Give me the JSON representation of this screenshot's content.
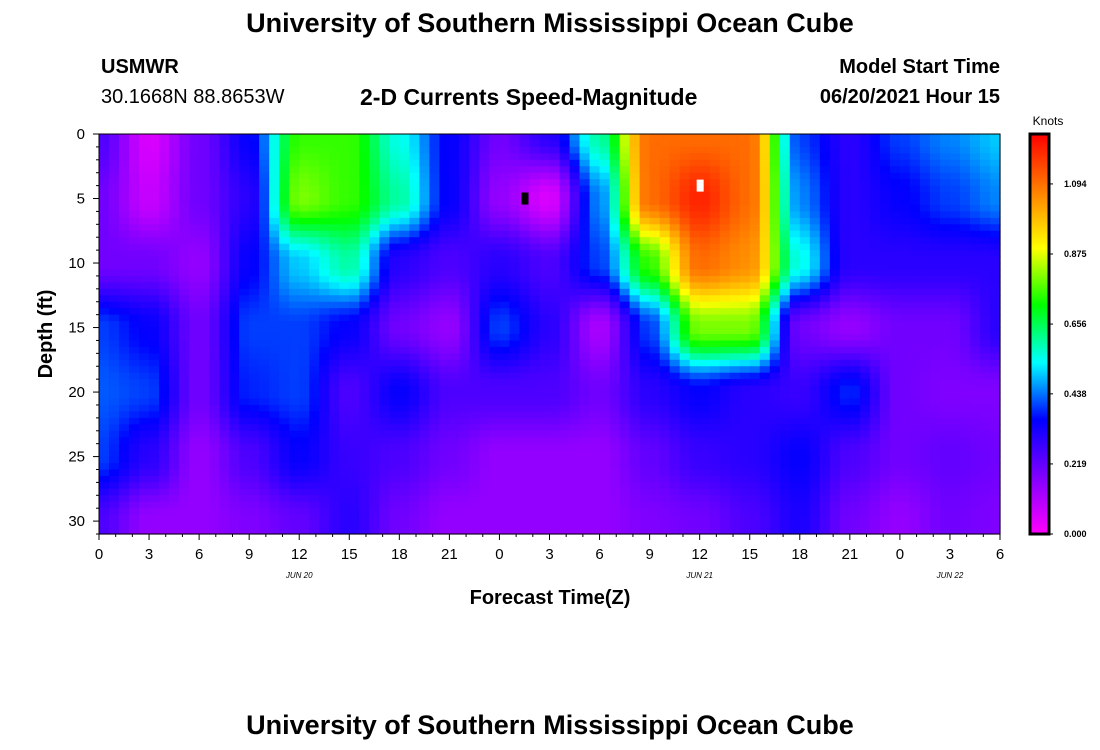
{
  "header": {
    "title": "University of Southern Mississippi Ocean Cube",
    "station": "USMWR",
    "location": "30.1668N  88.8653W",
    "plot_title": "2-D Currents Speed-Magnitude",
    "model_start_label": "Model Start Time",
    "model_start_value": "06/20/2021 Hour 15"
  },
  "footer": {
    "title": "University of Southern Mississippi Ocean Cube"
  },
  "colorbar": {
    "unit": "Knots",
    "labels": [
      "0.000",
      "0.219",
      "0.438",
      "0.656",
      "0.875",
      "1.094"
    ],
    "ticks": [
      0.0,
      0.219,
      0.438,
      0.656,
      0.875,
      1.094
    ],
    "max": 1.25,
    "colors": [
      "#ff00ff",
      "#8000ff",
      "#0000ff",
      "#00ffff",
      "#00ff00",
      "#ffff00",
      "#ff8000",
      "#ff0000"
    ]
  },
  "chart_data": {
    "type": "heatmap",
    "xlabel": "Forecast Time(Z)",
    "ylabel": "Depth (ft)",
    "x_range_hours": [
      0,
      54
    ],
    "ylim": [
      0,
      31
    ],
    "x_tick_labels": [
      "0",
      "3",
      "6",
      "9",
      "12",
      "15",
      "18",
      "21",
      "0",
      "3",
      "6",
      "9",
      "12",
      "15",
      "18",
      "21",
      "0",
      "3",
      "6"
    ],
    "y_tick_labels": [
      "0",
      "5",
      "10",
      "15",
      "20",
      "25",
      "30"
    ],
    "y_ticks": [
      0,
      5,
      10,
      15,
      20,
      25,
      30
    ],
    "date_labels": [
      {
        "label": "JUN 20",
        "hour": 12
      },
      {
        "label": "JUN 21",
        "hour": 36
      },
      {
        "label": "JUN 22",
        "hour": 51
      }
    ],
    "value_unit": "Knots",
    "depths": [
      0,
      5,
      10,
      15,
      20,
      25,
      30
    ],
    "hours": [
      0,
      3,
      6,
      9,
      12,
      15,
      18,
      21,
      24,
      27,
      30,
      33,
      36,
      39,
      42,
      45,
      48,
      51,
      54
    ],
    "values": [
      [
        0.25,
        0.05,
        0.2,
        0.35,
        0.75,
        0.75,
        0.55,
        0.35,
        0.2,
        0.3,
        0.6,
        1.1,
        1.1,
        1.1,
        0.4,
        0.3,
        0.4,
        0.45,
        0.5
      ],
      [
        0.2,
        0.08,
        0.2,
        0.3,
        0.8,
        0.75,
        0.6,
        0.35,
        0.15,
        0.05,
        0.45,
        1.1,
        1.2,
        1.1,
        0.45,
        0.3,
        0.35,
        0.4,
        0.45
      ],
      [
        0.2,
        0.2,
        0.15,
        0.35,
        0.5,
        0.6,
        0.3,
        0.25,
        0.3,
        0.25,
        0.4,
        0.75,
        1.1,
        1.05,
        0.55,
        0.3,
        0.3,
        0.3,
        0.3
      ],
      [
        0.4,
        0.35,
        0.2,
        0.4,
        0.4,
        0.35,
        0.2,
        0.15,
        0.4,
        0.3,
        0.12,
        0.4,
        0.8,
        0.8,
        0.2,
        0.15,
        0.2,
        0.2,
        0.3
      ],
      [
        0.42,
        0.4,
        0.2,
        0.38,
        0.4,
        0.25,
        0.35,
        0.25,
        0.25,
        0.25,
        0.2,
        0.3,
        0.35,
        0.3,
        0.28,
        0.38,
        0.2,
        0.18,
        0.18
      ],
      [
        0.4,
        0.3,
        0.15,
        0.25,
        0.35,
        0.28,
        0.25,
        0.2,
        0.15,
        0.15,
        0.15,
        0.22,
        0.28,
        0.3,
        0.35,
        0.25,
        0.2,
        0.22,
        0.2
      ],
      [
        0.25,
        0.15,
        0.15,
        0.18,
        0.22,
        0.3,
        0.2,
        0.15,
        0.15,
        0.15,
        0.15,
        0.18,
        0.2,
        0.25,
        0.32,
        0.2,
        0.15,
        0.2,
        0.18
      ]
    ],
    "markers": [
      {
        "hour": 25.5,
        "depth": 5,
        "color": "#000000"
      },
      {
        "hour": 36,
        "depth": 4,
        "color": "#ffffff"
      }
    ]
  }
}
